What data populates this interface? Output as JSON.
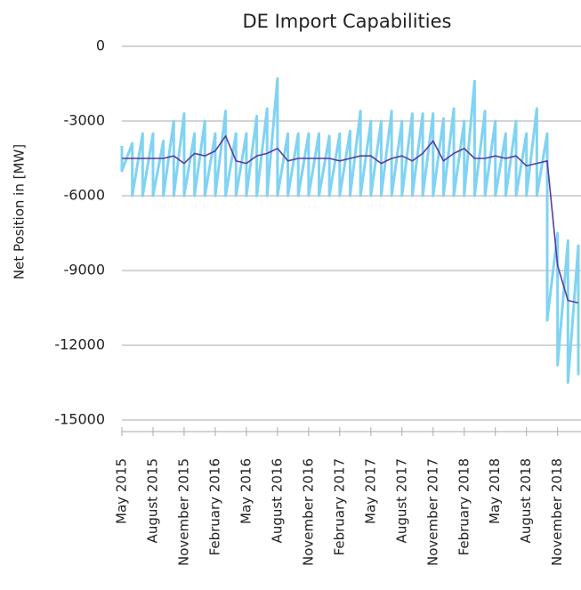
{
  "chart_data": {
    "type": "line",
    "title": "DE Import Capabilities",
    "y_label": "Net Position in [MW]",
    "x": [
      "2015-05",
      "2015-05",
      "2015-06",
      "2015-06",
      "2015-07",
      "2015-07",
      "2015-08",
      "2015-08",
      "2015-09",
      "2015-09",
      "2015-10",
      "2015-10",
      "2015-11",
      "2015-11",
      "2015-12",
      "2015-12",
      "2016-01",
      "2016-01",
      "2016-02",
      "2016-02",
      "2016-03",
      "2016-03",
      "2016-04",
      "2016-04",
      "2016-05",
      "2016-05",
      "2016-06",
      "2016-06",
      "2016-07",
      "2016-07",
      "2016-08",
      "2016-08",
      "2016-09",
      "2016-09",
      "2016-10",
      "2016-10",
      "2016-11",
      "2016-11",
      "2016-12",
      "2016-12",
      "2017-01",
      "2017-01",
      "2017-02",
      "2017-02",
      "2017-03",
      "2017-03",
      "2017-04",
      "2017-04",
      "2017-05",
      "2017-05",
      "2017-06",
      "2017-06",
      "2017-07",
      "2017-07",
      "2017-08",
      "2017-08",
      "2017-09",
      "2017-09",
      "2017-10",
      "2017-10",
      "2017-11",
      "2017-11",
      "2017-12",
      "2017-12",
      "2018-01",
      "2018-01",
      "2018-02",
      "2018-02",
      "2018-03",
      "2018-03",
      "2018-04",
      "2018-04",
      "2018-05",
      "2018-05",
      "2018-06",
      "2018-06",
      "2018-07",
      "2018-07",
      "2018-08",
      "2018-08",
      "2018-09",
      "2018-09",
      "2018-10",
      "2018-10",
      "2018-11",
      "2018-11",
      "2018-12",
      "2018-12",
      "2019-01",
      "2019-01"
    ],
    "series": [
      {
        "color": "#80d3f3",
        "values": [
          -4000,
          -5000,
          -3900,
          -6000,
          -3500,
          -6000,
          -3500,
          -6000,
          -3800,
          -6000,
          -3000,
          -6000,
          -2700,
          -6000,
          -3500,
          -6000,
          -3000,
          -6000,
          -3500,
          -6000,
          -2600,
          -6000,
          -3500,
          -6000,
          -3500,
          -6000,
          -2800,
          -6000,
          -2500,
          -6000,
          -1300,
          -6000,
          -3500,
          -6000,
          -3500,
          -6000,
          -3500,
          -6000,
          -3500,
          -6000,
          -3600,
          -6000,
          -3500,
          -6000,
          -3400,
          -6000,
          -2600,
          -6000,
          -3000,
          -6000,
          -3000,
          -6000,
          -2600,
          -6000,
          -3000,
          -6000,
          -2700,
          -6000,
          -2700,
          -6000,
          -2700,
          -6000,
          -2900,
          -6000,
          -2500,
          -6000,
          -3000,
          -6000,
          -1400,
          -6000,
          -2600,
          -6000,
          -3000,
          -6000,
          -3500,
          -6000,
          -3000,
          -6000,
          -3500,
          -6000,
          -2500,
          -6000,
          -3500,
          -11000,
          -7500,
          -12800,
          -7800,
          -13500,
          -8000,
          -13200
        ]
      },
      {
        "color": "#5b3a9c",
        "values": [
          -4500,
          -4500,
          -4500,
          -4500,
          -4500,
          -4500,
          -4500,
          -4500,
          -4500,
          -4500,
          -4400,
          -4400,
          -4700,
          -4700,
          -4300,
          -4300,
          -4400,
          -4400,
          -4200,
          -4200,
          -3600,
          -3600,
          -4600,
          -4600,
          -4700,
          -4700,
          -4400,
          -4400,
          -4300,
          -4300,
          -4100,
          -4100,
          -4600,
          -4600,
          -4500,
          -4500,
          -4500,
          -4500,
          -4500,
          -4500,
          -4500,
          -4500,
          -4600,
          -4600,
          -4500,
          -4500,
          -4400,
          -4400,
          -4400,
          -4400,
          -4700,
          -4700,
          -4500,
          -4500,
          -4400,
          -4400,
          -4600,
          -4600,
          -4300,
          -4300,
          -3800,
          -3800,
          -4600,
          -4600,
          -4300,
          -4300,
          -4100,
          -4100,
          -4500,
          -4500,
          -4500,
          -4500,
          -4400,
          -4400,
          -4500,
          -4500,
          -4400,
          -4400,
          -4800,
          -4800,
          -4700,
          -4700,
          -4600,
          -4600,
          -8800,
          -8800,
          -10200,
          -10200,
          -10300,
          -10300
        ]
      }
    ],
    "xlim": [
      "2015-05",
      "2019-01"
    ],
    "xticks": [
      {
        "value": "2015-05",
        "label": "May 2015"
      },
      {
        "value": "2015-08",
        "label": "August 2015"
      },
      {
        "value": "2015-11",
        "label": "November 2015"
      },
      {
        "value": "2016-02",
        "label": "February 2016"
      },
      {
        "value": "2016-05",
        "label": "May 2016"
      },
      {
        "value": "2016-08",
        "label": "August 2016"
      },
      {
        "value": "2016-11",
        "label": "November 2016"
      },
      {
        "value": "2017-02",
        "label": "February 2017"
      },
      {
        "value": "2017-05",
        "label": "May 2017"
      },
      {
        "value": "2017-08",
        "label": "August 2017"
      },
      {
        "value": "2017-11",
        "label": "November 2017"
      },
      {
        "value": "2018-02",
        "label": "February 2018"
      },
      {
        "value": "2018-05",
        "label": "May 2018"
      },
      {
        "value": "2018-08",
        "label": "August 2018"
      },
      {
        "value": "2018-11",
        "label": "November 2018"
      }
    ],
    "ylim": [
      -15000,
      0
    ],
    "yticks": [
      0,
      -3000,
      -6000,
      -9000,
      -12000,
      -15000
    ],
    "grid": true
  }
}
